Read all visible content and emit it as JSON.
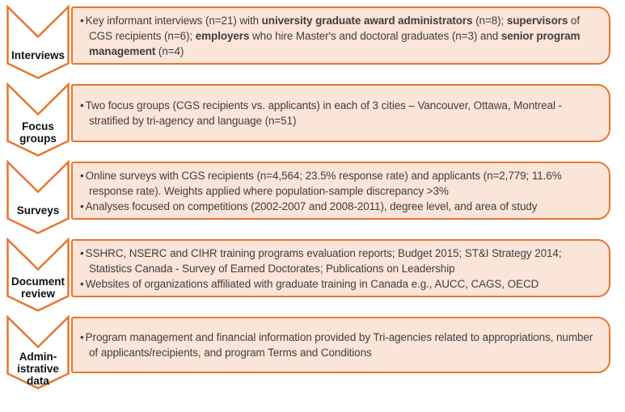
{
  "bullet_char": "•",
  "colors": {
    "border": "#E8762F",
    "box_fill": "#FBE4D8",
    "chevron_fill": "#FFFFFF",
    "text": "#3F3F3F",
    "label_text": "#111111"
  },
  "rows": [
    {
      "label": "Interviews",
      "bullets": [
        [
          {
            "t": "Key informant interviews (n=21) with ",
            "b": false
          },
          {
            "t": "university graduate award administrators",
            "b": true
          },
          {
            "t": " (n=8); ",
            "b": false
          },
          {
            "t": "supervisors",
            "b": true
          },
          {
            "t": " of CGS recipients (n=6); ",
            "b": false
          },
          {
            "t": "employers",
            "b": true
          },
          {
            "t": " who hire Master's and doctoral graduates (n=3) and ",
            "b": false
          },
          {
            "t": "senior program management",
            "b": true
          },
          {
            "t": " (n=4)",
            "b": false
          }
        ]
      ]
    },
    {
      "label": "Focus\ngroups",
      "bullets": [
        [
          {
            "t": "Two focus groups (CGS recipients vs. applicants) in each of 3 cities – Vancouver, Ottawa, Montreal - stratified by tri-agency and language (n=51)",
            "b": false
          }
        ]
      ]
    },
    {
      "label": "Surveys",
      "bullets": [
        [
          {
            "t": "Online surveys with CGS recipients (n=4,564; 23.5% response rate) and applicants (n=2,779; 11.6% response rate). Weights applied where population-sample discrepancy >3%",
            "b": false
          }
        ],
        [
          {
            "t": "Analyses focused on competitions (2002-2007 and 2008-2011), degree level, and area of study",
            "b": false
          }
        ]
      ]
    },
    {
      "label": "Document\nreview",
      "bullets": [
        [
          {
            "t": "SSHRC, NSERC and CIHR training programs evaluation reports; Budget 2015; ST&I Strategy 2014; Statistics Canada - Survey of Earned Doctorates; Publications on Leadership",
            "b": false
          }
        ],
        [
          {
            "t": "Websites of organizations affiliated with graduate training in Canada e.g., AUCC, CAGS, OECD",
            "b": false
          }
        ]
      ]
    },
    {
      "label": "Admin-\nistrative\ndata",
      "bullets": [
        [
          {
            "t": "Program management and financial information provided by Tri-agencies related to appropriations, number of applicants/recipients, and program Terms and Conditions",
            "b": false
          }
        ]
      ]
    }
  ]
}
